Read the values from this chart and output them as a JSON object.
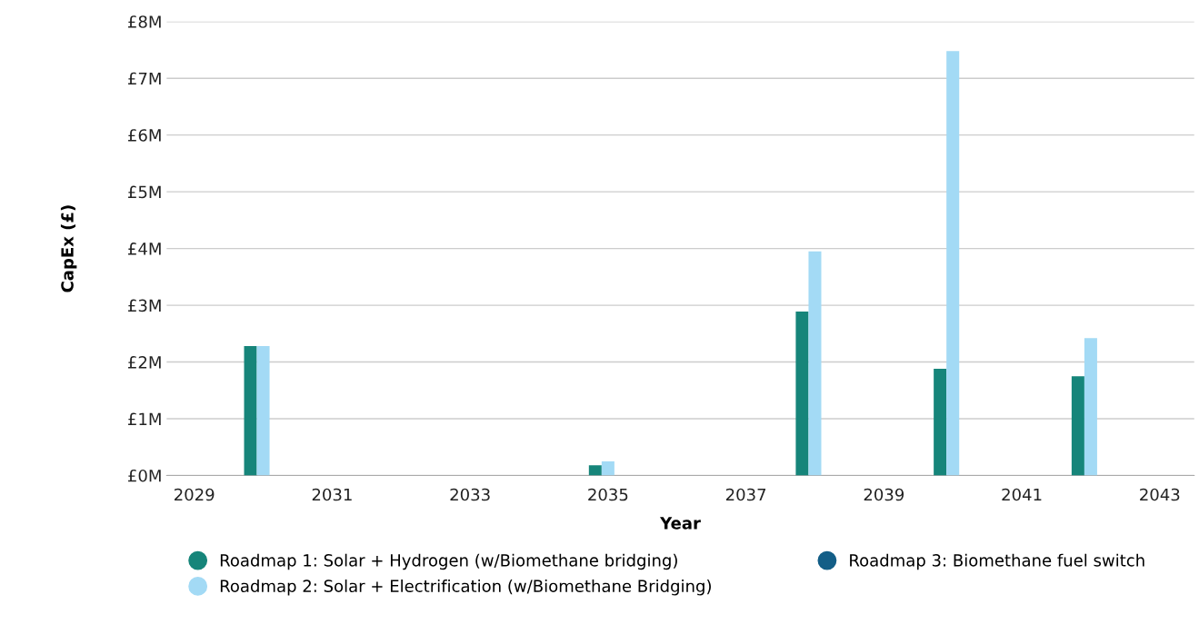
{
  "chart_data": {
    "type": "bar",
    "xlabel": "Year",
    "ylabel": "CapEx (£)",
    "x": [
      2030,
      2035,
      2038,
      2040,
      2042
    ],
    "series": [
      {
        "name": "Roadmap 1: Solar + Hydrogen (w/Biomethane bridging)",
        "color": "#16857a",
        "values": [
          2.28,
          0.18,
          2.89,
          1.88,
          1.75
        ]
      },
      {
        "name": "Roadmap 2: Solar + Electrification (w/Biomethane Bridging)",
        "color": "#a3daf5",
        "values": [
          2.28,
          0.25,
          3.95,
          7.48,
          2.42
        ]
      },
      {
        "name": "Roadmap 3: Biomethane fuel switch",
        "color": "#135e87",
        "values": [
          0,
          0,
          0,
          0,
          0
        ]
      }
    ],
    "xlim": [
      2028.6,
      2043.5
    ],
    "xticks": [
      2029,
      2031,
      2033,
      2035,
      2037,
      2039,
      2041,
      2043
    ],
    "ylim": [
      0,
      8
    ],
    "yticks": [
      {
        "value": 0,
        "label": "£0M"
      },
      {
        "value": 1,
        "label": "£1M"
      },
      {
        "value": 2,
        "label": "£2M"
      },
      {
        "value": 3,
        "label": "£3M"
      },
      {
        "value": 4,
        "label": "£4M"
      },
      {
        "value": 5,
        "label": "£5M"
      },
      {
        "value": 6,
        "label": "£6M"
      },
      {
        "value": 7,
        "label": "£7M"
      },
      {
        "value": 8,
        "label": "£8M"
      }
    ],
    "grid": "y",
    "legend": "bottom",
    "marker": "circle"
  }
}
